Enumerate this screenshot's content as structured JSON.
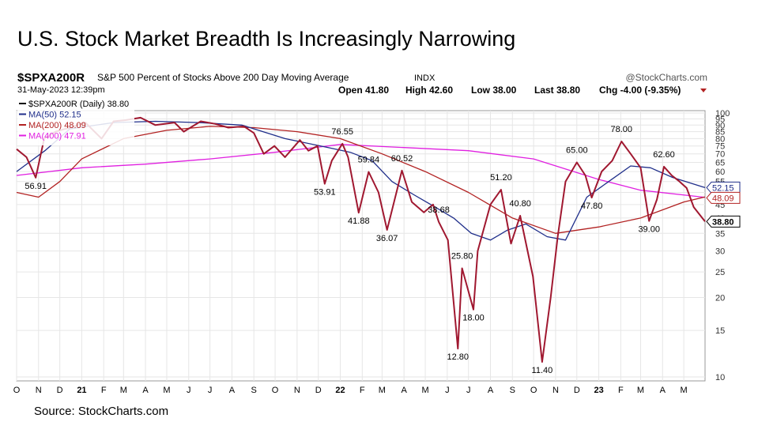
{
  "slide_title": "U.S. Stock Market Breadth Is Increasingly Narrowing",
  "source": "Source: StockCharts.com",
  "chart_data": {
    "type": "line",
    "symbol": "$SPXA200R",
    "description": "S&P 500 Percent of Stocks Above 200 Day Moving Average",
    "exchange": "INDX",
    "brand": "@StockCharts.com",
    "date": "31-May-2023 12:39pm",
    "quote": {
      "open": "Open 41.80",
      "high": "High 42.60",
      "low": "Low 38.00",
      "last": "Last 38.80",
      "chg": "Chg -4.00 (-9.35%)"
    },
    "legend": [
      {
        "label": "$SPXA200R (Daily) 38.80",
        "color": "#000000"
      },
      {
        "label": "MA(50) 52.15",
        "color": "#1f2e8a"
      },
      {
        "label": "MA(200) 48.09",
        "color": "#b22222"
      },
      {
        "label": "MA(400) 47.91",
        "color": "#e020e0"
      }
    ],
    "y_scale": "log",
    "ylim": [
      10,
      100
    ],
    "y_ticks": [
      10,
      15,
      20,
      25,
      30,
      35,
      40,
      45,
      50,
      55,
      60,
      65,
      70,
      75,
      80,
      85,
      90,
      95,
      100
    ],
    "x_ticks": [
      "O",
      "N",
      "D",
      "21",
      "F",
      "M",
      "A",
      "M",
      "J",
      "J",
      "A",
      "S",
      "O",
      "N",
      "D",
      "22",
      "F",
      "M",
      "A",
      "M",
      "J",
      "J",
      "A",
      "S",
      "O",
      "N",
      "D",
      "23",
      "F",
      "M",
      "A",
      "M"
    ],
    "x_range": [
      "2020-10-01",
      "2023-05-31"
    ],
    "grid": true,
    "series": [
      {
        "name": "$SPXA200R (Daily)",
        "color": "#000000",
        "x": [
          "2020-10-01",
          "2020-10-15",
          "2020-10-28",
          "2020-11-09",
          "2020-11-25",
          "2020-12-15",
          "2021-01-06",
          "2021-01-29",
          "2021-02-15",
          "2021-03-04",
          "2021-03-25",
          "2021-04-15",
          "2021-05-12",
          "2021-05-25",
          "2021-06-18",
          "2021-07-08",
          "2021-07-27",
          "2021-08-18",
          "2021-09-01",
          "2021-09-15",
          "2021-09-30",
          "2021-10-15",
          "2021-11-05",
          "2021-11-17",
          "2021-11-30",
          "2021-12-10",
          "2021-12-20",
          "2022-01-04",
          "2022-01-12",
          "2022-01-27",
          "2022-02-10",
          "2022-02-24",
          "2022-03-08",
          "2022-03-29",
          "2022-04-12",
          "2022-04-29",
          "2022-05-12",
          "2022-05-20",
          "2022-06-02",
          "2022-06-16",
          "2022-06-22",
          "2022-07-08",
          "2022-07-14",
          "2022-08-01",
          "2022-08-16",
          "2022-08-30",
          "2022-09-12",
          "2022-09-30",
          "2022-10-13",
          "2022-10-25",
          "2022-11-04",
          "2022-11-15",
          "2022-12-01",
          "2022-12-13",
          "2022-12-22",
          "2023-01-05",
          "2023-01-20",
          "2023-02-02",
          "2023-02-15",
          "2023-03-01",
          "2023-03-13",
          "2023-03-24",
          "2023-04-03",
          "2023-04-14",
          "2023-04-25",
          "2023-05-05",
          "2023-05-15",
          "2023-05-31"
        ],
        "values": [
          73,
          68,
          56.91,
          80,
          85,
          88,
          92,
          80,
          93,
          94,
          96,
          90,
          92,
          85,
          93,
          91,
          88,
          89,
          84,
          70,
          75,
          68,
          79,
          72,
          75,
          53.91,
          66,
          76.55,
          68,
          41.88,
          59.84,
          50,
          36.07,
          60.52,
          46,
          42,
          45,
          38.68,
          33,
          12.8,
          25.8,
          18,
          30,
          45,
          51.2,
          32,
          40.8,
          24,
          11.4,
          20,
          34,
          55,
          65,
          58,
          47.8,
          60,
          66,
          78,
          70,
          62,
          39,
          47,
          62.6,
          58,
          55,
          52,
          44,
          38.8
        ]
      },
      {
        "name": "MA(50)",
        "color": "#1f2e8a",
        "x": [
          "2020-10-01",
          "2020-11-10",
          "2020-12-15",
          "2021-02-15",
          "2021-04-15",
          "2021-06-15",
          "2021-08-15",
          "2021-10-15",
          "2021-12-15",
          "2022-01-15",
          "2022-02-15",
          "2022-03-15",
          "2022-04-15",
          "2022-05-15",
          "2022-06-10",
          "2022-07-05",
          "2022-08-01",
          "2022-08-25",
          "2022-09-20",
          "2022-10-20",
          "2022-11-15",
          "2022-12-15",
          "2023-01-15",
          "2023-02-15",
          "2023-03-15",
          "2023-04-15",
          "2023-05-31"
        ],
        "values": [
          60,
          72,
          87,
          92,
          93,
          92,
          90,
          80,
          74,
          71,
          66,
          55,
          49,
          44,
          40,
          35,
          33,
          36,
          38,
          34,
          33,
          48,
          55,
          63,
          62,
          57,
          52.15
        ]
      },
      {
        "name": "MA(200)",
        "color": "#b22222",
        "x": [
          "2020-10-01",
          "2020-11-01",
          "2020-12-01",
          "2021-01-01",
          "2021-03-01",
          "2021-05-01",
          "2021-07-01",
          "2021-09-01",
          "2021-11-01",
          "2022-01-01",
          "2022-03-01",
          "2022-05-01",
          "2022-07-01",
          "2022-09-01",
          "2022-11-01",
          "2023-01-01",
          "2023-03-01",
          "2023-05-01",
          "2023-05-31"
        ],
        "values": [
          50,
          48,
          55,
          67,
          80,
          86,
          89,
          88,
          85,
          80,
          70,
          60,
          50,
          40,
          35,
          37,
          40,
          46,
          48.09
        ]
      },
      {
        "name": "MA(400)",
        "color": "#e020e0",
        "x": [
          "2020-10-01",
          "2021-01-01",
          "2021-04-01",
          "2021-07-01",
          "2021-10-01",
          "2022-01-01",
          "2022-04-01",
          "2022-07-01",
          "2022-10-01",
          "2023-01-01",
          "2023-03-01",
          "2023-05-31"
        ],
        "values": [
          58,
          62,
          64,
          67,
          71,
          76,
          74,
          72,
          67,
          56,
          51,
          47.91
        ]
      }
    ],
    "annotations": [
      {
        "date": "2020-10-28",
        "value": 56.91,
        "label": "56.91",
        "pos": "below"
      },
      {
        "date": "2021-12-10",
        "value": 53.91,
        "label": "53.91",
        "pos": "below"
      },
      {
        "date": "2022-01-04",
        "value": 76.55,
        "label": "76.55",
        "pos": "above"
      },
      {
        "date": "2022-01-27",
        "value": 41.88,
        "label": "41.88",
        "pos": "below"
      },
      {
        "date": "2022-02-10",
        "value": 59.84,
        "label": "59.84",
        "pos": "above"
      },
      {
        "date": "2022-03-08",
        "value": 36.07,
        "label": "36.07",
        "pos": "below"
      },
      {
        "date": "2022-03-29",
        "value": 60.52,
        "label": "60.52",
        "pos": "above"
      },
      {
        "date": "2022-05-20",
        "value": 38.68,
        "label": "38.68",
        "pos": "above"
      },
      {
        "date": "2022-06-16",
        "value": 12.8,
        "label": "12.80",
        "pos": "below"
      },
      {
        "date": "2022-06-22",
        "value": 25.8,
        "label": "25.80",
        "pos": "above"
      },
      {
        "date": "2022-07-08",
        "value": 18,
        "label": "18.00",
        "pos": "below"
      },
      {
        "date": "2022-08-16",
        "value": 51.2,
        "label": "51.20",
        "pos": "above"
      },
      {
        "date": "2022-09-12",
        "value": 40.8,
        "label": "40.80",
        "pos": "above"
      },
      {
        "date": "2022-10-13",
        "value": 11.4,
        "label": "11.40",
        "pos": "below"
      },
      {
        "date": "2022-12-01",
        "value": 65,
        "label": "65.00",
        "pos": "above"
      },
      {
        "date": "2022-12-22",
        "value": 47.8,
        "label": "47.80",
        "pos": "below"
      },
      {
        "date": "2023-02-02",
        "value": 78,
        "label": "78.00",
        "pos": "above"
      },
      {
        "date": "2023-03-13",
        "value": 39,
        "label": "39.00",
        "pos": "below"
      },
      {
        "date": "2023-04-03",
        "value": 62.6,
        "label": "62.60",
        "pos": "above"
      }
    ],
    "last_value_tags": [
      {
        "label": "52.15",
        "value": 52.15,
        "color": "#1f2e8a"
      },
      {
        "label": "48.09",
        "value": 48.09,
        "color": "#b22222"
      },
      {
        "label": "38.80",
        "value": 38.8,
        "color": "#000000"
      }
    ]
  }
}
